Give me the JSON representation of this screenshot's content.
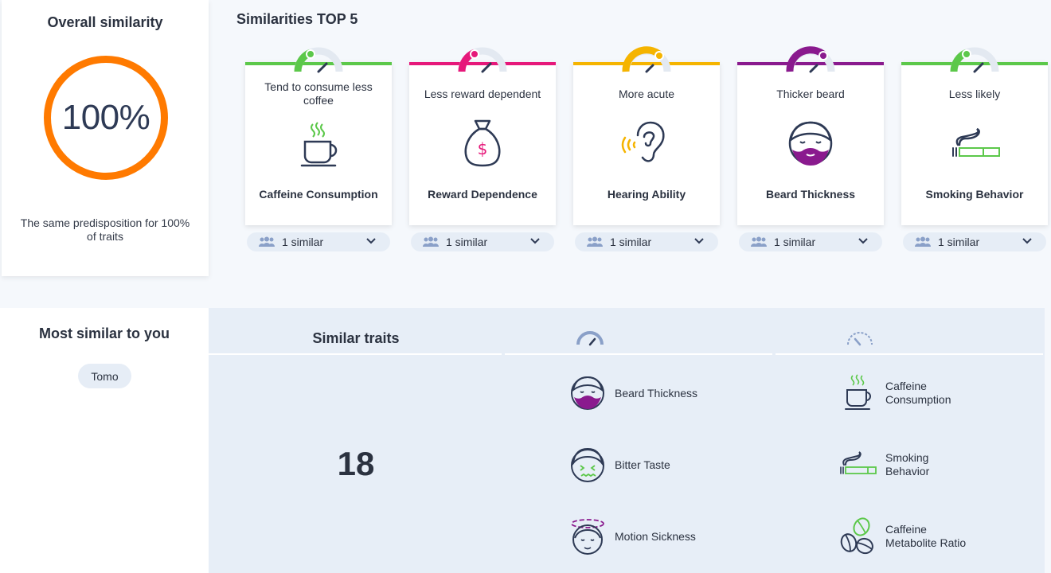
{
  "overall": {
    "title": "Overall similarity",
    "percent": "100%",
    "percent_value": 100,
    "description": "The same predisposition for 100% of traits",
    "ring_color": "#ff7a00"
  },
  "top5": {
    "title": "Similarities TOP 5",
    "cards": [
      {
        "top_label": "Tend to consume less coffee",
        "bottom_label": "Caffeine Consumption",
        "icon": "coffee-cup-icon",
        "color": "#5cc84a",
        "similar": "1 similar"
      },
      {
        "top_label": "Less reward dependent",
        "bottom_label": "Reward Dependence",
        "icon": "money-bag-icon",
        "color": "#e6187a",
        "similar": "1 similar"
      },
      {
        "top_label": "More acute",
        "bottom_label": "Hearing Ability",
        "icon": "ear-icon",
        "color": "#f5b400",
        "similar": "1 similar"
      },
      {
        "top_label": "Thicker beard",
        "bottom_label": "Beard Thickness",
        "icon": "bearded-face-icon",
        "color": "#8a1a8e",
        "similar": "1 similar"
      },
      {
        "top_label": "Less likely",
        "bottom_label": "Smoking Behavior",
        "icon": "cigarette-icon",
        "color": "#5cc84a",
        "similar": "1 similar"
      }
    ]
  },
  "most_similar": {
    "title": "Most similar to you",
    "person": "Tomo"
  },
  "similar_traits": {
    "title": "Similar traits",
    "count": "18",
    "column_a": [
      {
        "label": "Beard Thickness",
        "icon": "bearded-face-icon"
      },
      {
        "label": "Bitter Taste",
        "icon": "bitter-face-icon"
      },
      {
        "label": "Motion Sickness",
        "icon": "dizzy-face-icon"
      }
    ],
    "column_b": [
      {
        "label": "Caffeine Consumption",
        "icon": "coffee-cup-icon"
      },
      {
        "label": "Smoking Behavior",
        "icon": "cigarette-icon"
      },
      {
        "label": "Caffeine Metabolite Ratio",
        "icon": "coffee-beans-icon"
      }
    ]
  }
}
